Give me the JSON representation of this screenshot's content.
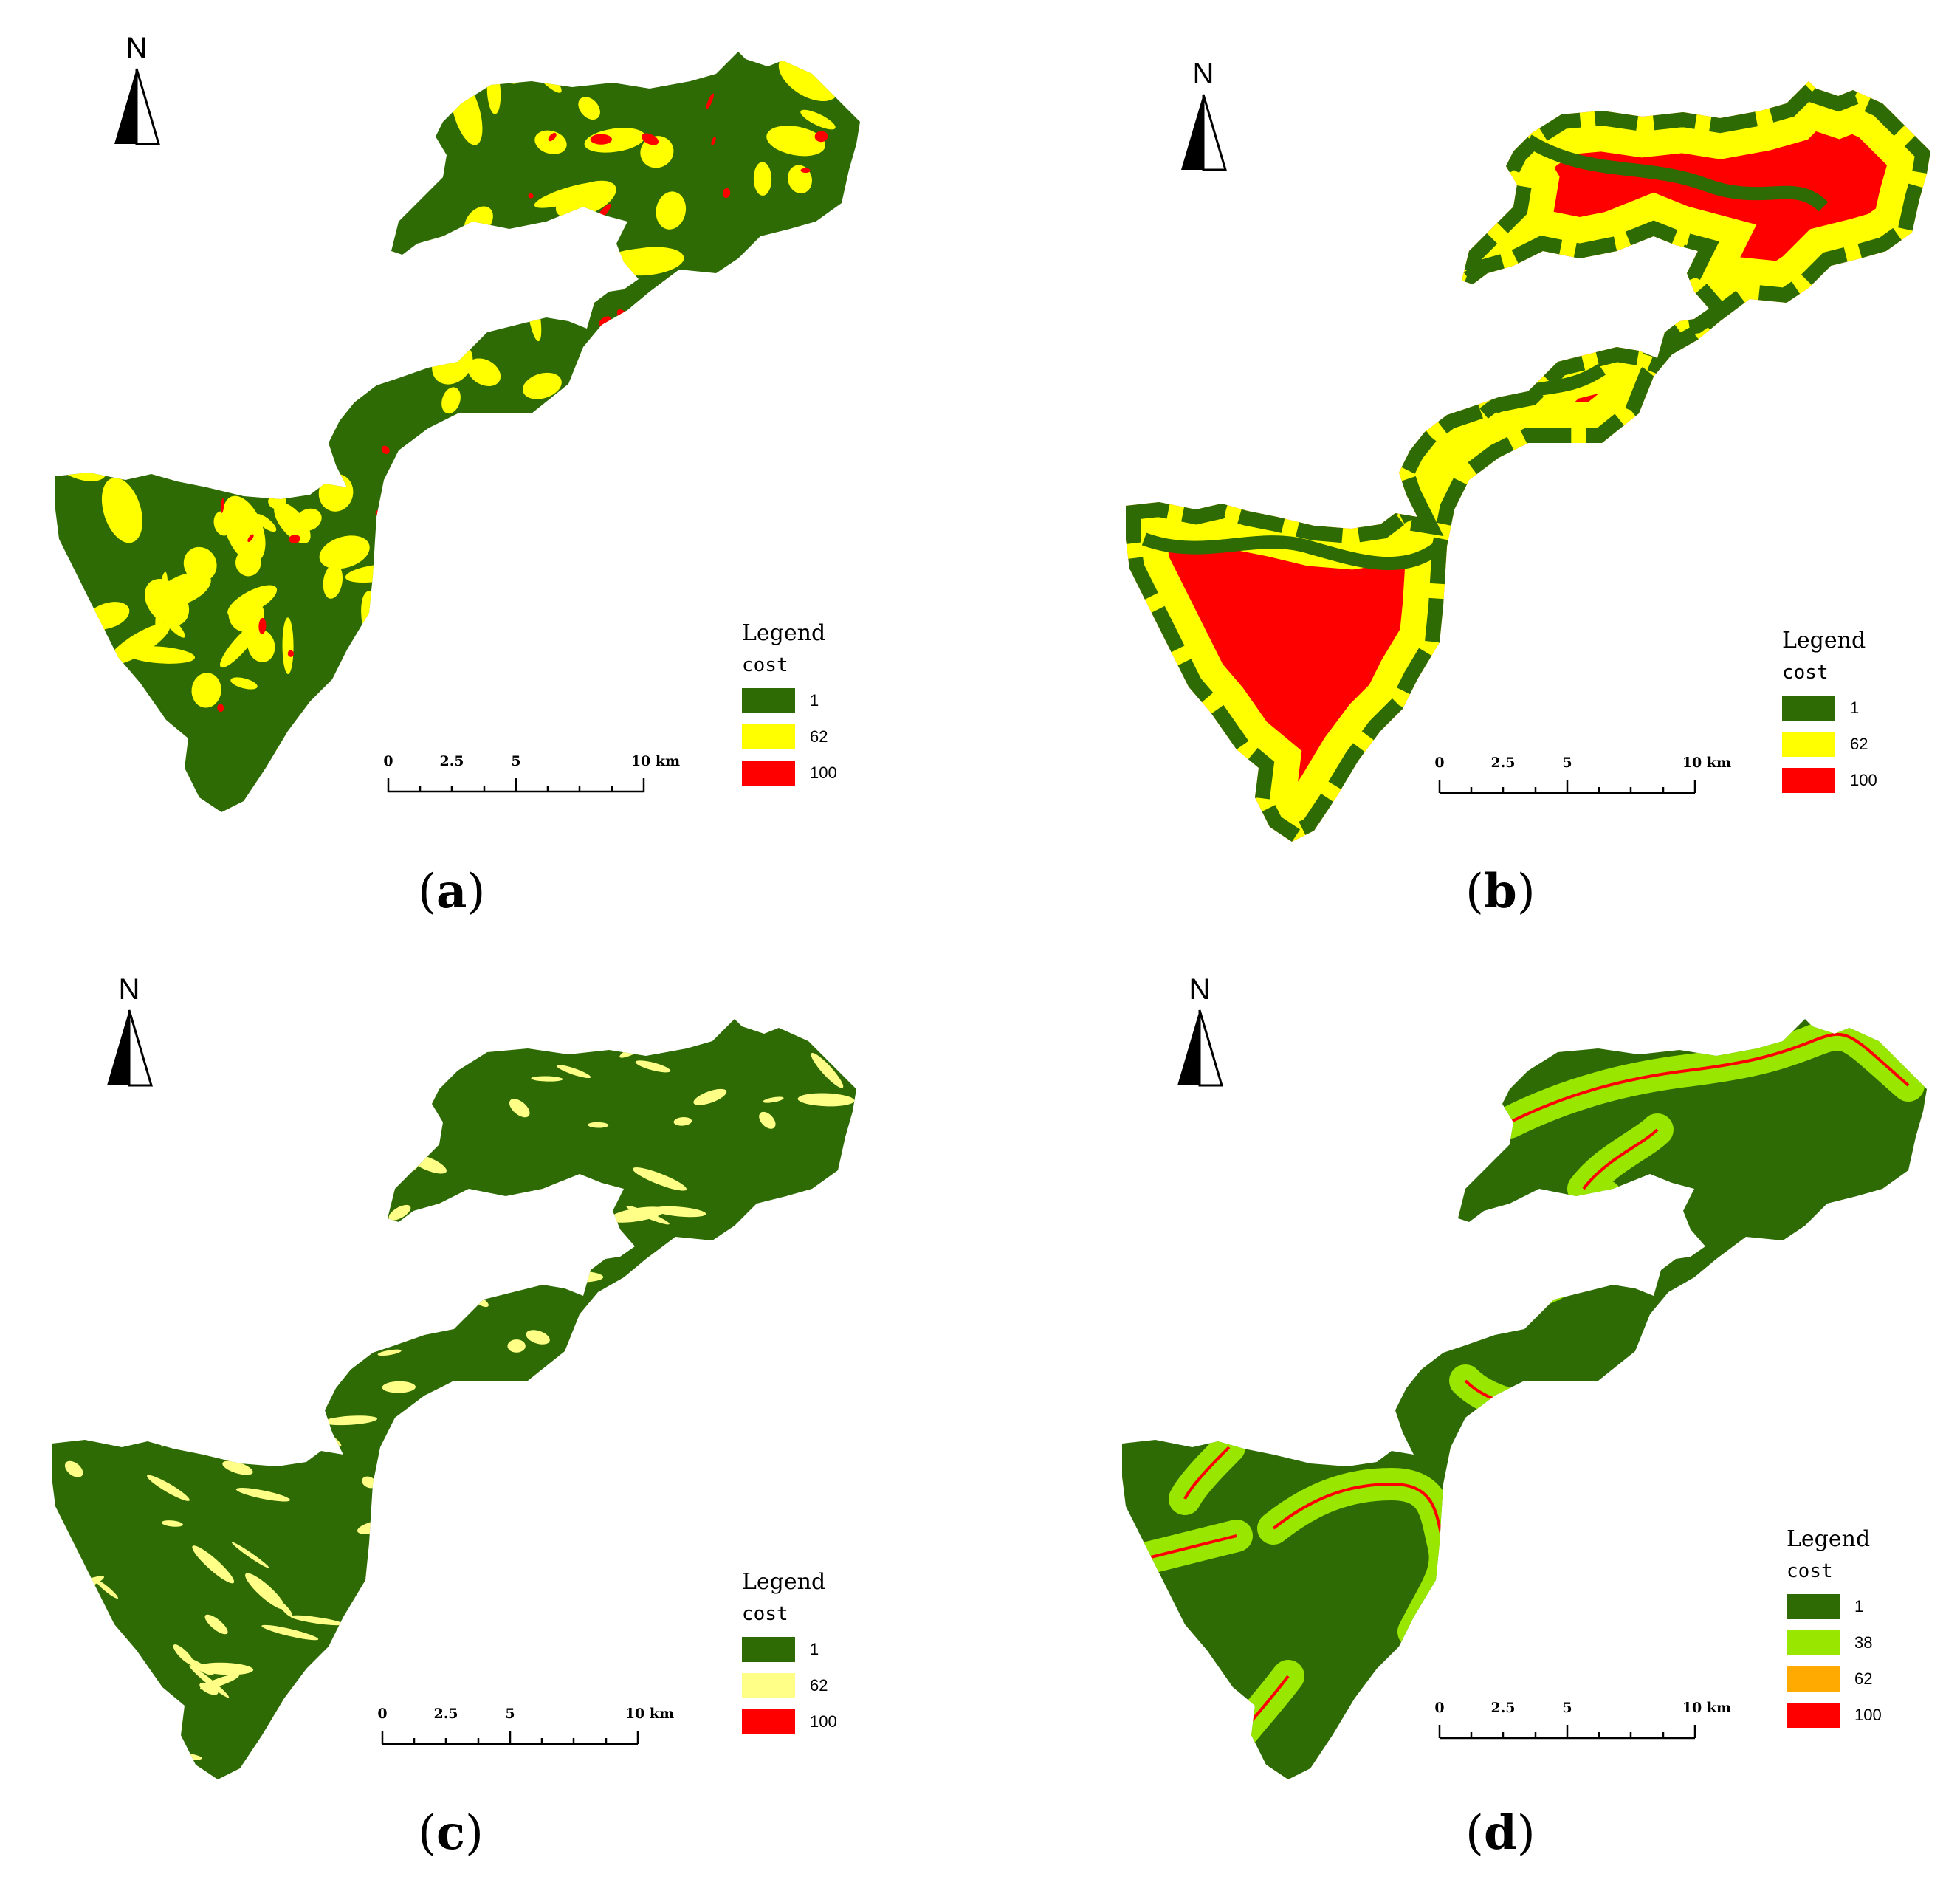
{
  "panels": [
    {
      "id": "a",
      "caption_open": "(",
      "caption_letter": "a",
      "caption_close": ")",
      "north_label": "N",
      "legend": {
        "title": "Legend",
        "field": "cost",
        "classes": [
          {
            "label": "1",
            "color": "#2e6b04"
          },
          {
            "label": "62",
            "color": "#ffff00"
          },
          {
            "label": "100",
            "color": "#ff0000"
          }
        ]
      },
      "scale": {
        "ticks": [
          "0",
          "2.5",
          "5",
          "10 km"
        ]
      },
      "fill_style": "mixed-patches",
      "colors": {
        "base": "#2e6b04",
        "mid": "#ffff00",
        "high": "#ff0000"
      }
    },
    {
      "id": "b",
      "caption_open": "(",
      "caption_letter": "b",
      "caption_close": ")",
      "north_label": "N",
      "legend": {
        "title": "Legend",
        "field": "cost",
        "classes": [
          {
            "label": "1",
            "color": "#2e6b04"
          },
          {
            "label": "62",
            "color": "#ffff00"
          },
          {
            "label": "100",
            "color": "#ff0000"
          }
        ]
      },
      "scale": {
        "ticks": [
          "0",
          "2.5",
          "5",
          "10 km"
        ]
      },
      "fill_style": "distance-bands",
      "colors": {
        "base": "#ff0000",
        "mid": "#ffff00",
        "high": "#2e6b04"
      }
    },
    {
      "id": "c",
      "caption_open": "(",
      "caption_letter": "c",
      "caption_close": ")",
      "north_label": "N",
      "legend": {
        "title": "Legend",
        "field": "cost",
        "classes": [
          {
            "label": "1",
            "color": "#2e6b04"
          },
          {
            "label": "62",
            "color": "#ffff88"
          },
          {
            "label": "100",
            "color": "#ff0000"
          }
        ]
      },
      "scale": {
        "ticks": [
          "0",
          "2.5",
          "5",
          "10 km"
        ]
      },
      "fill_style": "sparse-streaks",
      "colors": {
        "base": "#2e6b04",
        "mid": "#ffff88",
        "high": "#ff0000"
      }
    },
    {
      "id": "d",
      "caption_open": "(",
      "caption_letter": "d",
      "caption_close": ")",
      "north_label": "N",
      "legend": {
        "title": "Legend",
        "field": "cost",
        "classes": [
          {
            "label": "1",
            "color": "#2e6b04"
          },
          {
            "label": "38",
            "color": "#99e600"
          },
          {
            "label": "62",
            "color": "#ffaa00"
          },
          {
            "label": "100",
            "color": "#ff0000"
          }
        ]
      },
      "scale": {
        "ticks": [
          "0",
          "2.5",
          "5",
          "10 km"
        ]
      },
      "fill_style": "river-buffers",
      "colors": {
        "base": "#2e6b04",
        "mid": "#99e600",
        "high": "#ff0000"
      }
    }
  ]
}
